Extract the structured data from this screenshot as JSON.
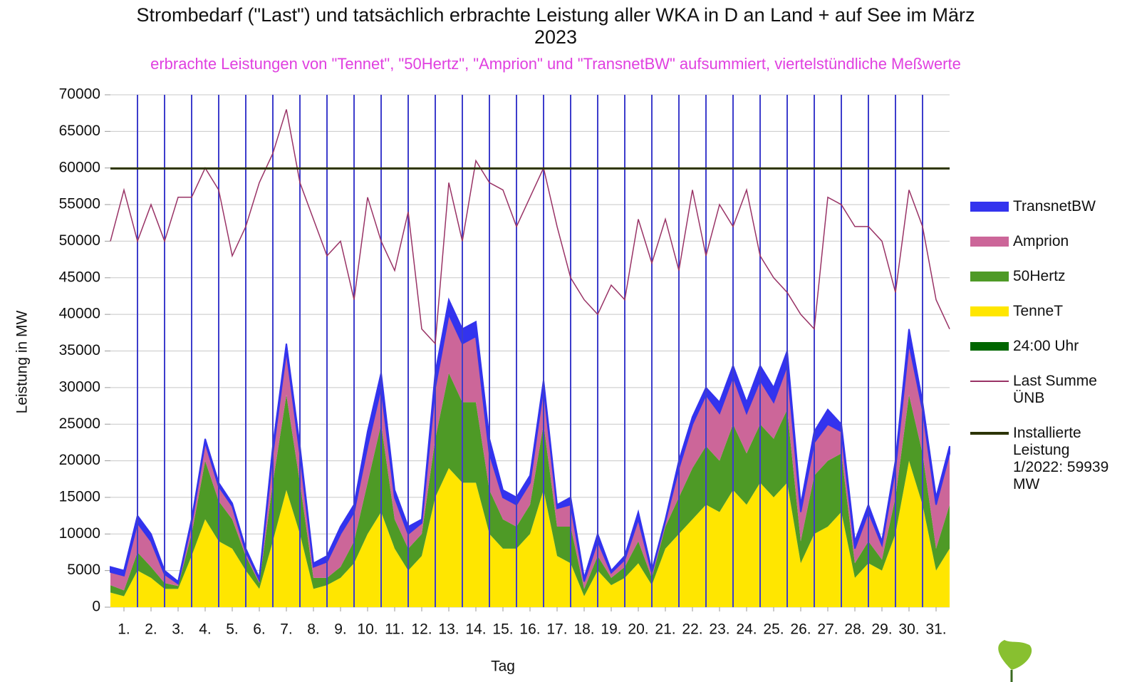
{
  "chart_data": {
    "type": "stacked_area",
    "title": "Strombedarf (\"Last\") und tatsächlich erbrachte Leistung aller WKA in D an Land + auf See im März 2023",
    "subtitle": "erbrachte Leistungen von \"Tennet\", \"50Hertz\", \"Amprion\" und \"TransnetBW\" aufsummiert, viertelstündliche Meßwerte",
    "x_label": "Tag",
    "y_label": "Leistung in MW",
    "xlim": [
      0,
      31
    ],
    "ylim": [
      0,
      70000
    ],
    "yticks": [
      0,
      5000,
      10000,
      15000,
      20000,
      25000,
      30000,
      35000,
      40000,
      45000,
      50000,
      55000,
      60000,
      65000,
      70000
    ],
    "xticks": [
      {
        "value": 0.5,
        "label": "1."
      },
      {
        "value": 1.5,
        "label": "2."
      },
      {
        "value": 2.5,
        "label": "3."
      },
      {
        "value": 3.5,
        "label": "4."
      },
      {
        "value": 4.5,
        "label": "5."
      },
      {
        "value": 5.5,
        "label": "6."
      },
      {
        "value": 6.5,
        "label": "7."
      },
      {
        "value": 7.5,
        "label": "8."
      },
      {
        "value": 8.5,
        "label": "9."
      },
      {
        "value": 9.5,
        "label": "10."
      },
      {
        "value": 10.5,
        "label": "11."
      },
      {
        "value": 11.5,
        "label": "12."
      },
      {
        "value": 12.5,
        "label": "13."
      },
      {
        "value": 13.5,
        "label": "14."
      },
      {
        "value": 14.5,
        "label": "15."
      },
      {
        "value": 15.5,
        "label": "16."
      },
      {
        "value": 16.5,
        "label": "17."
      },
      {
        "value": 17.5,
        "label": "18."
      },
      {
        "value": 18.5,
        "label": "19."
      },
      {
        "value": 19.5,
        "label": "20."
      },
      {
        "value": 20.5,
        "label": "21."
      },
      {
        "value": 21.5,
        "label": "22."
      },
      {
        "value": 22.5,
        "label": "23."
      },
      {
        "value": 23.5,
        "label": "24."
      },
      {
        "value": 24.5,
        "label": "25."
      },
      {
        "value": 25.5,
        "label": "26."
      },
      {
        "value": 26.5,
        "label": "27."
      },
      {
        "value": 27.5,
        "label": "28."
      },
      {
        "value": 28.5,
        "label": "29."
      },
      {
        "value": 29.5,
        "label": "30."
      },
      {
        "value": 30.5,
        "label": "31."
      }
    ],
    "grid": true,
    "x": [
      0,
      0.5,
      1,
      1.5,
      2,
      2.5,
      3,
      3.5,
      4,
      4.5,
      5,
      5.5,
      6,
      6.5,
      7,
      7.5,
      8,
      8.5,
      9,
      9.5,
      10,
      10.5,
      11,
      11.5,
      12,
      12.5,
      13,
      13.5,
      14,
      14.5,
      15,
      15.5,
      16,
      16.5,
      17,
      17.5,
      18,
      18.5,
      19,
      19.5,
      20,
      20.5,
      21,
      21.5,
      22,
      22.5,
      23,
      23.5,
      24,
      24.5,
      25,
      25.5,
      26,
      26.5,
      27,
      27.5,
      28,
      28.5,
      29,
      29.5,
      30,
      30.5,
      31
    ],
    "series": [
      {
        "name": "TransnetBW",
        "color": "#3333ee",
        "values": [
          700,
          700,
          1000,
          1000,
          500,
          300,
          500,
          500,
          500,
          400,
          400,
          300,
          1000,
          1000,
          1000,
          500,
          800,
          1000,
          1000,
          2000,
          2000,
          1000,
          1000,
          500,
          2000,
          2000,
          2000,
          2000,
          2000,
          1000,
          1000,
          1000,
          1000,
          500,
          1000,
          500,
          1000,
          300,
          500,
          1000,
          300,
          300,
          1000,
          1000,
          1000,
          1500,
          1500,
          1500,
          2000,
          2000,
          2000,
          1000,
          1500,
          2000,
          1000,
          1000,
          1000,
          500,
          1000,
          2000,
          1000,
          1000,
          1000
        ]
      },
      {
        "name": "Amprion",
        "color": "#cc6699",
        "values": [
          1800,
          2000,
          4000,
          3500,
          1200,
          300,
          1500,
          2500,
          2000,
          1800,
          600,
          400,
          4000,
          6000,
          4000,
          1500,
          2200,
          4500,
          4000,
          5000,
          5000,
          3000,
          2000,
          1500,
          7000,
          8000,
          8000,
          9000,
          5000,
          3000,
          3000,
          3000,
          5000,
          2500,
          3000,
          1000,
          2000,
          700,
          1000,
          3000,
          700,
          700,
          4000,
          6000,
          7000,
          6500,
          6500,
          5500,
          6000,
          5000,
          6000,
          4000,
          4500,
          5000,
          3000,
          2000,
          4000,
          2000,
          4000,
          7000,
          6000,
          6000,
          7000
        ]
      },
      {
        "name": "50Hertz",
        "color": "#4e9a26",
        "values": [
          1000,
          800,
          2500,
          1500,
          800,
          400,
          3000,
          8000,
          5500,
          4000,
          2000,
          800,
          8000,
          13000,
          7000,
          1500,
          1000,
          1500,
          3000,
          7000,
          12000,
          4000,
          3000,
          3000,
          8000,
          13000,
          11000,
          11000,
          6000,
          4000,
          3000,
          4000,
          9000,
          4000,
          5000,
          1000,
          2000,
          1000,
          1500,
          3000,
          1000,
          3000,
          5000,
          7000,
          8000,
          7000,
          9000,
          7000,
          8000,
          8000,
          10000,
          3000,
          8000,
          9000,
          8000,
          2000,
          3000,
          1500,
          5000,
          9000,
          7000,
          3000,
          6000
        ]
      },
      {
        "name": "TenneT",
        "color": "#ffe600",
        "values": [
          2000,
          1500,
          5000,
          4000,
          2500,
          2500,
          7000,
          12000,
          9000,
          8000,
          5000,
          2500,
          9000,
          16000,
          10000,
          2500,
          3000,
          4000,
          6000,
          10000,
          13000,
          8000,
          5000,
          7000,
          15000,
          19000,
          17000,
          17000,
          10000,
          8000,
          8000,
          10000,
          16000,
          7000,
          6000,
          1500,
          5000,
          3000,
          4000,
          6000,
          3000,
          8000,
          10000,
          12000,
          14000,
          13000,
          16000,
          14000,
          17000,
          15000,
          17000,
          6000,
          10000,
          11000,
          13000,
          4000,
          6000,
          5000,
          10000,
          20000,
          14000,
          5000,
          8000
        ]
      }
    ],
    "load": {
      "name": "Last Summe ÜNB",
      "color": "#993366",
      "values": [
        50000,
        57000,
        50000,
        55000,
        50000,
        56000,
        56000,
        60000,
        57000,
        48000,
        52000,
        58000,
        62000,
        68000,
        58000,
        53000,
        48000,
        50000,
        42000,
        56000,
        50000,
        46000,
        54000,
        38000,
        36000,
        58000,
        50000,
        61000,
        58000,
        57000,
        52000,
        56000,
        60000,
        52000,
        45000,
        42000,
        40000,
        44000,
        42000,
        53000,
        47000,
        53000,
        46000,
        57000,
        48000,
        55000,
        52000,
        57000,
        48000,
        45000,
        43000,
        40000,
        38000,
        56000,
        55000,
        52000,
        52000,
        50000,
        43000,
        57000,
        52000,
        42000,
        38000
      ]
    },
    "day_lines": {
      "name": "24:00 Uhr",
      "color": "#3d3dcc",
      "legend_color": "#006600",
      "x": [
        1,
        2,
        3,
        4,
        5,
        6,
        7,
        8,
        9,
        10,
        11,
        12,
        13,
        14,
        15,
        16,
        17,
        18,
        19,
        20,
        21,
        22,
        23,
        24,
        25,
        26,
        27,
        28,
        29,
        30
      ]
    },
    "installed": {
      "name": "Installierte Leistung 1/2022: 59939 MW",
      "color": "#2b3300",
      "value": 59939
    }
  }
}
